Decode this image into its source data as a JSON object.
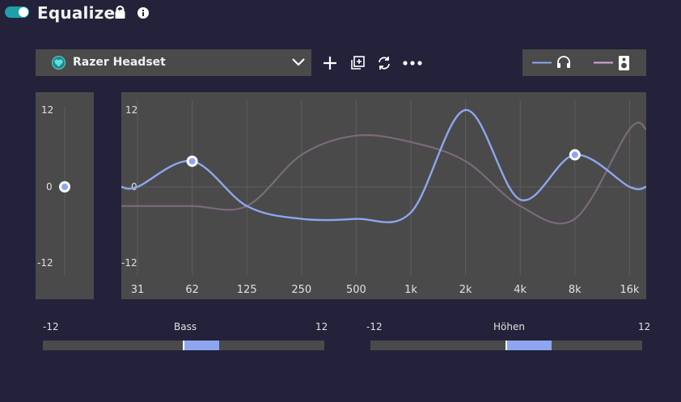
{
  "header": {
    "title": "Equalizer",
    "enabled": true
  },
  "device": {
    "name": "Razer Headset",
    "icon": "heart-icon"
  },
  "toolbar": {
    "icons": [
      "plus-icon",
      "duplicate-icon",
      "sync-icon",
      "more-icon"
    ]
  },
  "legend": {
    "items": [
      {
        "icon": "headphones-icon",
        "color": "#8ea6ef"
      },
      {
        "icon": "speaker-icon",
        "color": "#c9a0c8"
      }
    ]
  },
  "preamp": {
    "max_label": "12",
    "mid_label": "0",
    "min_label": "-12",
    "value_db": 0
  },
  "graph": {
    "y_max_label": "12",
    "y_mid_label": "0",
    "y_min_label": "-12",
    "frequencies": [
      "31",
      "62",
      "125",
      "250",
      "500",
      "1k",
      "2k",
      "4k",
      "8k",
      "16k"
    ],
    "headphone_color": "#8ea6ef",
    "speaker_color": "#7a6a7a"
  },
  "chart_data": {
    "type": "line",
    "x": [
      "31",
      "62",
      "125",
      "250",
      "500",
      "1k",
      "2k",
      "4k",
      "8k",
      "16k"
    ],
    "ylim": [
      -12,
      12
    ],
    "series": [
      {
        "values": [
          0,
          4,
          -3,
          -5,
          -5,
          -4,
          12,
          -2,
          5,
          0
        ]
      },
      {
        "values": [
          -3,
          -3,
          -3,
          5,
          8,
          7,
          4,
          -3,
          -5,
          9
        ]
      }
    ],
    "control_points": [
      {
        "x": "62",
        "y": 4
      },
      {
        "x": "8k",
        "y": 5
      }
    ]
  },
  "bass": {
    "label": "Bass",
    "min_label": "-12",
    "max_label": "12",
    "value_db": 3
  },
  "treble": {
    "label": "Höhen",
    "min_label": "-12",
    "max_label": "12",
    "value_db": 4
  }
}
